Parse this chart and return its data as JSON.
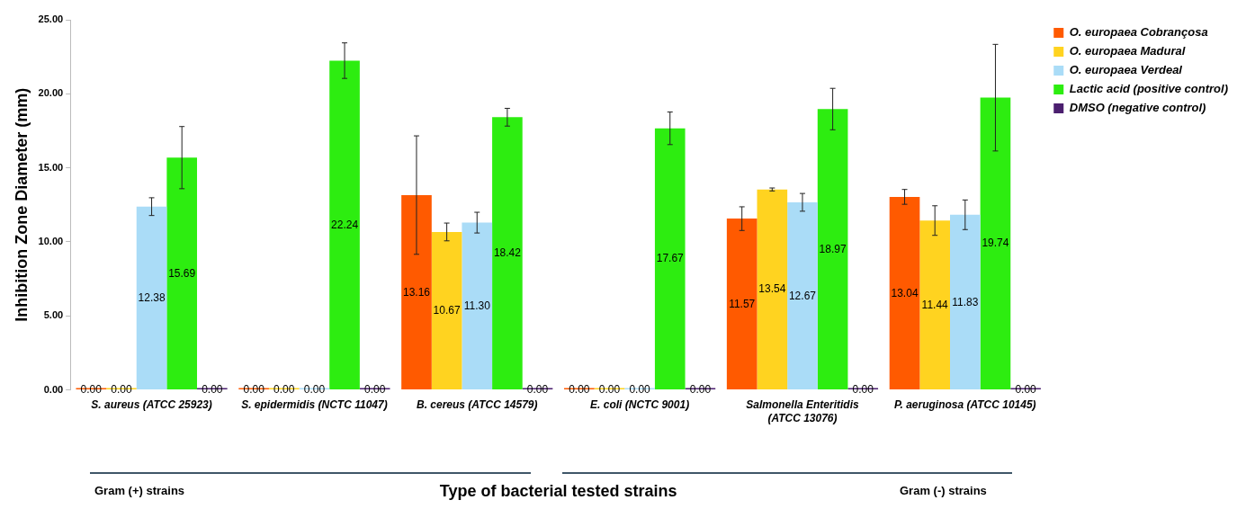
{
  "chart_data": {
    "type": "bar",
    "xlabel": "Type of bacterial tested strains",
    "ylabel": "Inhibition Zone Diameter (mm)",
    "categories": [
      "S. aureus (ATCC 25923)",
      "S. epidermidis (NCTC 11047)",
      "B. cereus (ATCC 14579)",
      "E. coli (NCTC 9001)",
      "Salmonella Enteritidis (ATCC 13076)",
      "P. aeruginosa (ATCC 10145)"
    ],
    "series": [
      {
        "name": "O. europaea Cobrançosa",
        "color": "#ff5a00",
        "values": [
          0,
          0,
          13.16,
          0,
          11.57,
          13.04
        ],
        "value_labels": [
          "0.00",
          "0.00",
          "13.16",
          "0.00",
          "11.57",
          "13.04"
        ],
        "errors": [
          null,
          null,
          4.0,
          null,
          0.8,
          0.5
        ]
      },
      {
        "name": "O. europaea Madural",
        "color": "#ffd320",
        "values": [
          0,
          0,
          10.67,
          0,
          13.54,
          11.44
        ],
        "value_labels": [
          "0.00",
          "0.00",
          "10.67",
          "0.00",
          "13.54",
          "11.44"
        ],
        "errors": [
          null,
          null,
          0.6,
          null,
          0.1,
          1.0
        ]
      },
      {
        "name": "O. europaea Verdeal",
        "color": "#aadcf7",
        "values": [
          12.38,
          0,
          11.3,
          0,
          12.67,
          11.83
        ],
        "value_labels": [
          "12.38",
          "0.00",
          "11.30",
          "0.00",
          "12.67",
          "11.83"
        ],
        "errors": [
          0.6,
          null,
          0.7,
          null,
          0.6,
          1.0
        ]
      },
      {
        "name": "Lactic acid (positive control)",
        "color": "#2ded10",
        "values": [
          15.69,
          22.24,
          18.42,
          17.67,
          18.97,
          19.74
        ],
        "value_labels": [
          "15.69",
          "22.24",
          "18.42",
          "17.67",
          "18.97",
          "19.74"
        ],
        "errors": [
          2.1,
          1.2,
          0.6,
          1.1,
          1.4,
          3.6
        ]
      },
      {
        "name": "DMSO (negative control)",
        "color": "#4b1f6f",
        "values": [
          0,
          0,
          0,
          0,
          0,
          0
        ],
        "value_labels": [
          "0.00",
          "0.00",
          "0.00",
          "0.00",
          "0.00",
          "0.00"
        ]
      }
    ],
    "ylim": [
      0,
      25
    ],
    "yticks": [
      {
        "value": 0,
        "label": "0.00"
      },
      {
        "value": 5,
        "label": "5.00"
      },
      {
        "value": 10,
        "label": "10.00"
      },
      {
        "value": 15,
        "label": "15.00"
      },
      {
        "value": 20,
        "label": "20.00"
      },
      {
        "value": 25,
        "label": "25.00"
      }
    ],
    "grid": false,
    "legend": "right",
    "annotations": [
      "Gram (+) strains",
      "Gram (-) strains"
    ]
  }
}
